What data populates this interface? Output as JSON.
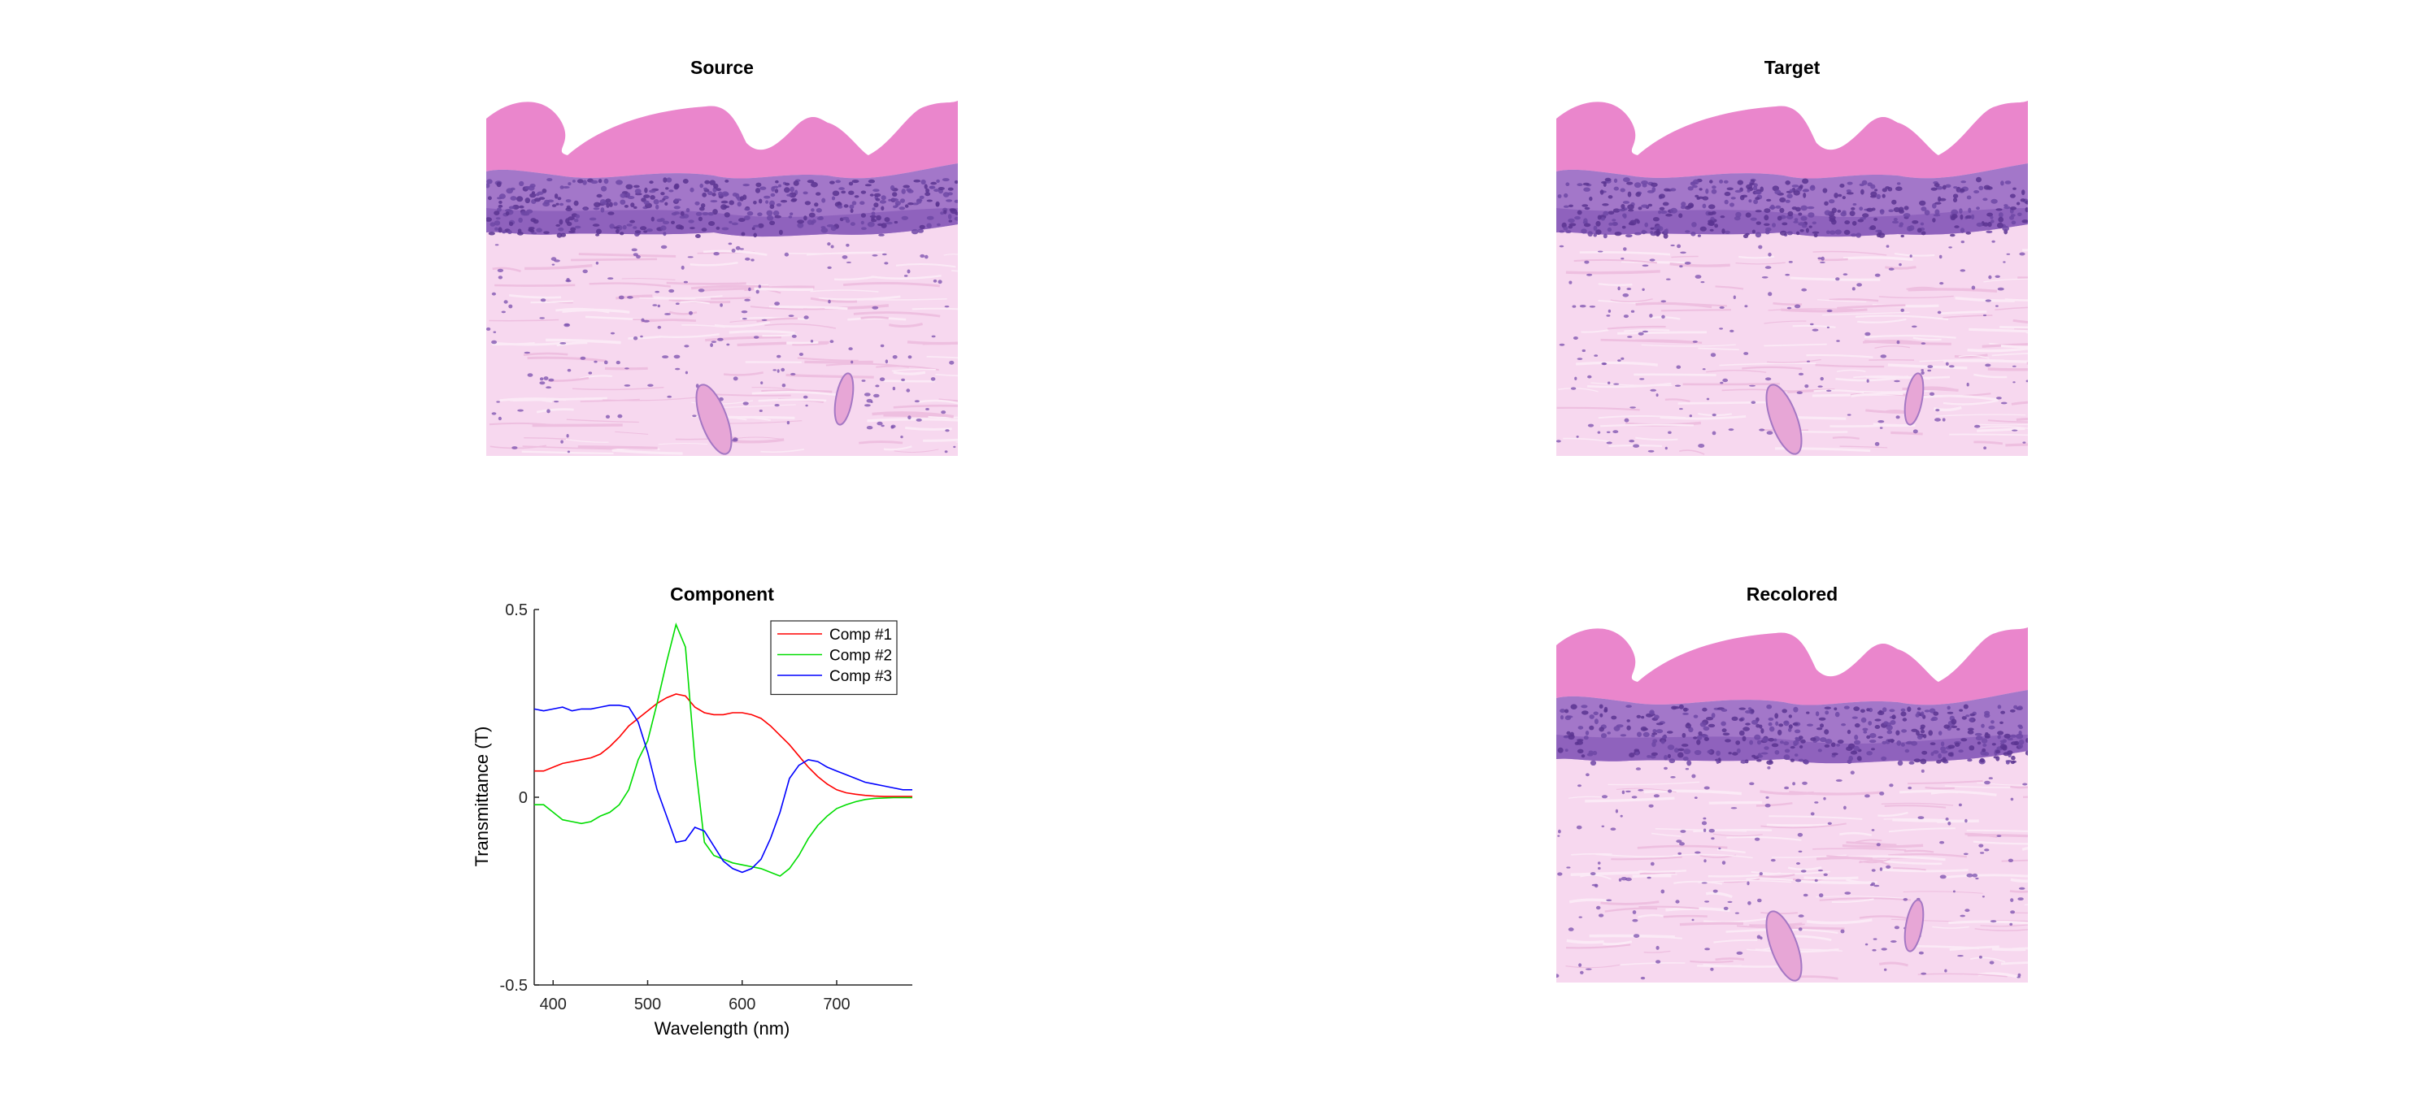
{
  "panels": {
    "source": {
      "title": "Source"
    },
    "target": {
      "title": "Target"
    },
    "component": {
      "title": "Component"
    },
    "recolored": {
      "title": "Recolored"
    }
  },
  "chart_data": {
    "type": "line",
    "title": "Component",
    "xlabel": "Wavelength (nm)",
    "ylabel": "Transmittance (T)",
    "xlim": [
      380,
      780
    ],
    "ylim": [
      -0.5,
      0.5
    ],
    "xticks": [
      400,
      500,
      600,
      700
    ],
    "yticks": [
      -0.5,
      0,
      0.5
    ],
    "ytick_labels": [
      "-0.5",
      "0",
      "0.5"
    ],
    "grid": false,
    "legend_position": "top-right",
    "series": [
      {
        "name": "Comp #1",
        "color": "#ff0000",
        "x": [
          380,
          390,
          400,
          410,
          420,
          430,
          440,
          450,
          460,
          470,
          480,
          490,
          500,
          510,
          520,
          530,
          540,
          550,
          560,
          570,
          580,
          590,
          600,
          610,
          620,
          630,
          640,
          650,
          660,
          670,
          680,
          690,
          700,
          710,
          720,
          730,
          740,
          750,
          760,
          770,
          780
        ],
        "y": [
          0.07,
          0.07,
          0.08,
          0.09,
          0.095,
          0.1,
          0.105,
          0.115,
          0.135,
          0.16,
          0.19,
          0.21,
          0.23,
          0.25,
          0.265,
          0.275,
          0.27,
          0.24,
          0.225,
          0.22,
          0.22,
          0.225,
          0.225,
          0.22,
          0.21,
          0.19,
          0.165,
          0.14,
          0.11,
          0.08,
          0.055,
          0.035,
          0.02,
          0.012,
          0.008,
          0.005,
          0.003,
          0.002,
          0.002,
          0.002,
          0.002
        ]
      },
      {
        "name": "Comp #2",
        "color": "#00dd00",
        "x": [
          380,
          390,
          400,
          410,
          420,
          430,
          440,
          450,
          460,
          470,
          480,
          490,
          500,
          510,
          520,
          530,
          540,
          550,
          560,
          570,
          580,
          590,
          600,
          610,
          620,
          630,
          640,
          650,
          660,
          670,
          680,
          690,
          700,
          710,
          720,
          730,
          740,
          750,
          760,
          770,
          780
        ],
        "y": [
          -0.02,
          -0.02,
          -0.04,
          -0.06,
          -0.065,
          -0.07,
          -0.065,
          -0.05,
          -0.04,
          -0.02,
          0.02,
          0.1,
          0.15,
          0.25,
          0.36,
          0.46,
          0.4,
          0.1,
          -0.12,
          -0.155,
          -0.165,
          -0.175,
          -0.18,
          -0.185,
          -0.19,
          -0.2,
          -0.21,
          -0.19,
          -0.155,
          -0.11,
          -0.075,
          -0.05,
          -0.03,
          -0.02,
          -0.012,
          -0.006,
          -0.003,
          -0.002,
          -0.001,
          -0.001,
          -0.001
        ]
      },
      {
        "name": "Comp #3",
        "color": "#0000ff",
        "x": [
          380,
          390,
          400,
          410,
          420,
          430,
          440,
          450,
          460,
          470,
          480,
          490,
          500,
          510,
          520,
          530,
          540,
          550,
          560,
          570,
          580,
          590,
          600,
          610,
          620,
          630,
          640,
          650,
          660,
          670,
          680,
          690,
          700,
          710,
          720,
          730,
          740,
          750,
          760,
          770,
          780
        ],
        "y": [
          0.235,
          0.23,
          0.235,
          0.24,
          0.23,
          0.235,
          0.235,
          0.24,
          0.245,
          0.245,
          0.24,
          0.2,
          0.12,
          0.02,
          -0.05,
          -0.12,
          -0.115,
          -0.08,
          -0.09,
          -0.13,
          -0.17,
          -0.19,
          -0.2,
          -0.19,
          -0.165,
          -0.11,
          -0.04,
          0.05,
          0.085,
          0.1,
          0.095,
          0.08,
          0.07,
          0.06,
          0.05,
          0.04,
          0.035,
          0.03,
          0.025,
          0.02,
          0.02
        ]
      }
    ]
  }
}
